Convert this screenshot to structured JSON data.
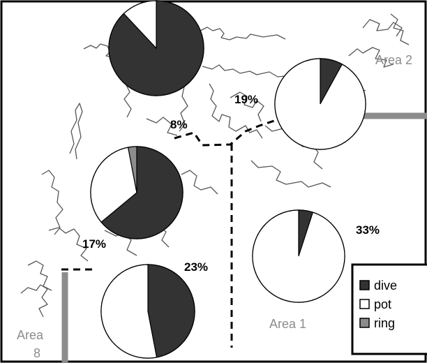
{
  "colors": {
    "dive": "#333333",
    "pot": "#ffffff",
    "ring": "#8c8c8c",
    "coast": "#555555",
    "boundary": "#000000",
    "area_border": "#8c8c8c",
    "area_label": "#8c8c8c"
  },
  "area_labels": {
    "area1": "Area 1",
    "area2": "Area 2",
    "area8_line1": "Area",
    "area8_line2": "8"
  },
  "legend": {
    "items": [
      {
        "key": "dive",
        "label": "dive"
      },
      {
        "key": "pot",
        "label": "pot"
      },
      {
        "key": "ring",
        "label": "ring"
      }
    ]
  },
  "pies": [
    {
      "id": "top",
      "percent_label": "",
      "dive": 0.88,
      "pot": 0.12,
      "ring": 0.0
    },
    {
      "id": "north-east",
      "percent_label": "19%",
      "dive": 0.08,
      "pot": 0.92,
      "ring": 0.0
    },
    {
      "id": "centre",
      "percent_label": "8%",
      "dive": 0.0,
      "pot": 0.0,
      "ring": 0.0
    },
    {
      "id": "west",
      "percent_label": "17%",
      "dive": 0.64,
      "pot": 0.33,
      "ring": 0.03
    },
    {
      "id": "south-west",
      "percent_label": "23%",
      "dive": 0.47,
      "pot": 0.53,
      "ring": 0.0
    },
    {
      "id": "south-east",
      "percent_label": "33%",
      "dive": 0.05,
      "pot": 0.95,
      "ring": 0.0
    }
  ]
}
